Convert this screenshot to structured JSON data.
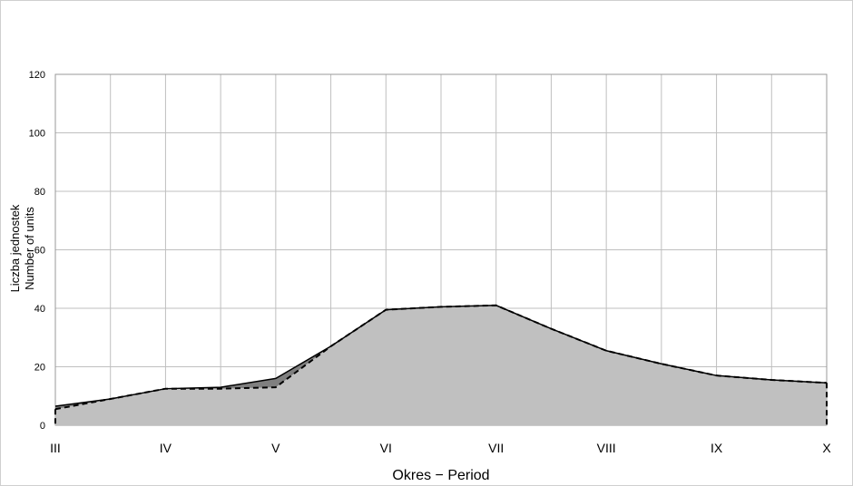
{
  "chart_data": {
    "type": "area",
    "title": "",
    "xlabel": "Okres − Period",
    "ylabel_line1": "Liczba jednostek",
    "ylabel_line2": "Number of units",
    "categories": [
      "III",
      "IV",
      "V",
      "VI",
      "VII",
      "VIII",
      "IX",
      "X"
    ],
    "x": [
      3,
      3.5,
      4,
      4.5,
      5,
      5.5,
      6,
      6.5,
      7,
      7.5,
      8,
      8.5,
      9,
      9.5,
      10
    ],
    "ylim": [
      0,
      120
    ],
    "yticks": [
      0,
      20,
      40,
      60,
      80,
      100,
      120
    ],
    "grid": true,
    "series": [
      {
        "style": "solid-dark-area",
        "values": [
          6.5,
          9,
          12.5,
          13,
          16,
          27,
          39.5,
          40.5,
          41,
          33,
          25.5,
          21,
          17,
          15.5,
          14.5
        ]
      },
      {
        "style": "dashed-light-area",
        "values": [
          5.5,
          9,
          12.5,
          12.5,
          13,
          27,
          39.5,
          40.5,
          41,
          33,
          25.5,
          21,
          17,
          15.5,
          14.5
        ]
      }
    ],
    "colors": {
      "area_dark": "#7f7f7f",
      "area_light": "#c0c0c0",
      "grid": "#bfbfbf",
      "line": "#000000"
    }
  }
}
